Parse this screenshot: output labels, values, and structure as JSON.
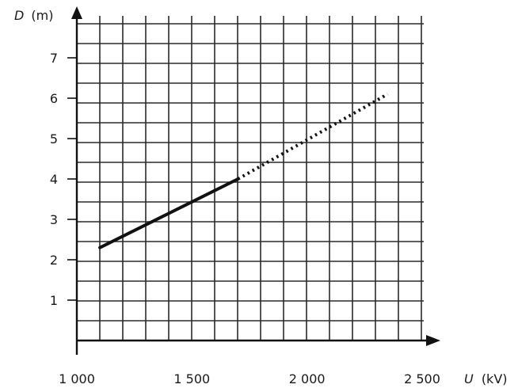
{
  "chart_data": {
    "type": "line",
    "xlabel_var": "U",
    "xlabel_unit": "(kV)",
    "ylabel_var": "D",
    "ylabel_unit": "(m)",
    "xlim": [
      1000,
      2500
    ],
    "ylim": [
      0,
      7.8
    ],
    "x_ticks": [
      {
        "value": 1000,
        "label": "1 000"
      },
      {
        "value": 1500,
        "label": "1 500"
      },
      {
        "value": 2000,
        "label": "2 000"
      },
      {
        "value": 2500,
        "label": "2 500"
      }
    ],
    "y_ticks": [
      {
        "value": 1,
        "label": "1"
      },
      {
        "value": 2,
        "label": "2"
      },
      {
        "value": 3,
        "label": "3"
      },
      {
        "value": 4,
        "label": "4"
      },
      {
        "value": 5,
        "label": "5"
      },
      {
        "value": 6,
        "label": "6"
      },
      {
        "value": 7,
        "label": "7"
      }
    ],
    "grid": true,
    "series": [
      {
        "style": "solid",
        "points": [
          {
            "x": 1100,
            "y": 2.3
          },
          {
            "x": 1700,
            "y": 4.0
          }
        ]
      },
      {
        "style": "dotted",
        "points": [
          {
            "x": 1700,
            "y": 4.0
          },
          {
            "x": 2350,
            "y": 6.1
          }
        ]
      }
    ]
  }
}
